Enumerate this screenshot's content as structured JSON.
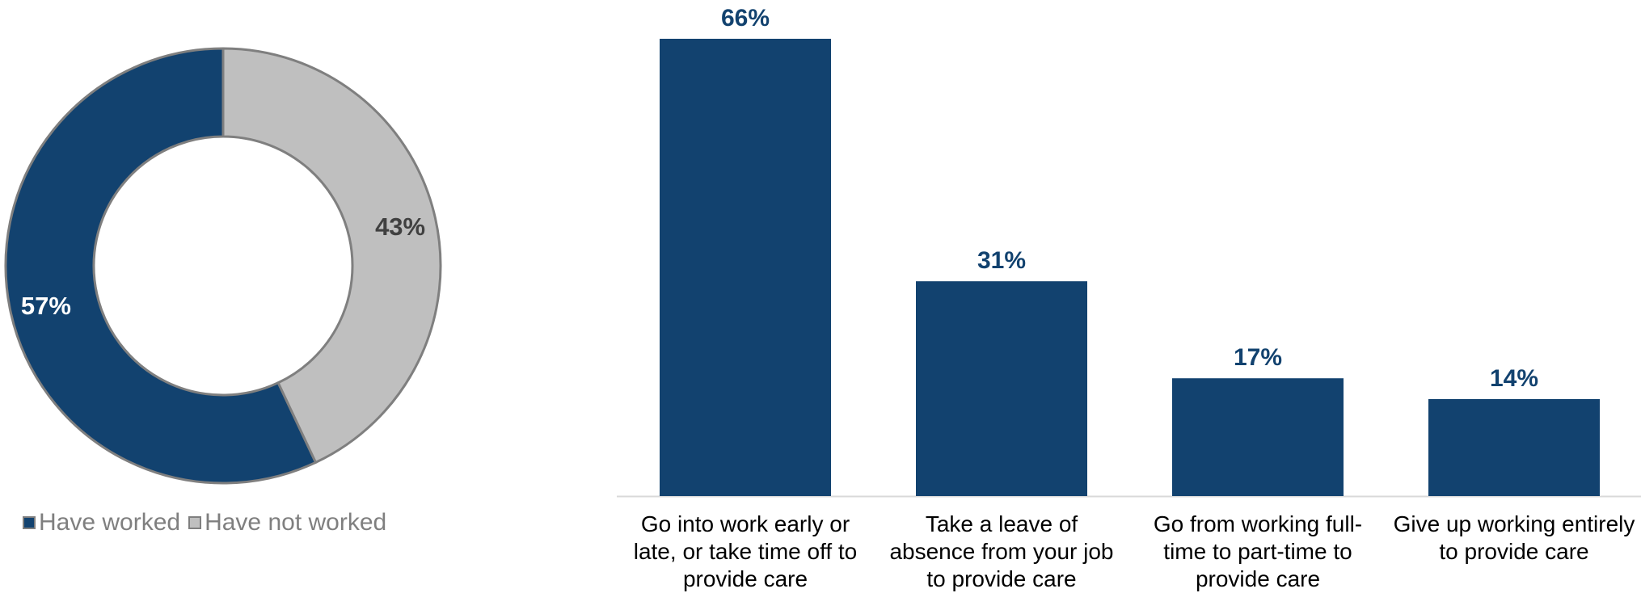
{
  "chart_data": [
    {
      "type": "pie",
      "categories": [
        "Have worked",
        "Have not worked"
      ],
      "values": [
        57,
        43
      ],
      "value_labels": [
        "57%",
        "43%"
      ],
      "legend": [
        "Have worked",
        "Have not worked"
      ],
      "legend_position": "bottom-left"
    },
    {
      "type": "bar",
      "categories": [
        [
          "Go into work early or",
          "late, or take time off to",
          "provide care"
        ],
        [
          "Take a leave of",
          "absence from your job",
          "to provide care"
        ],
        [
          "Go from working full-",
          "time to part-time to",
          "provide care"
        ],
        [
          "Give up working entirely",
          "to provide care"
        ]
      ],
      "values": [
        66,
        31,
        17,
        14
      ],
      "value_labels": [
        "66%",
        "31%",
        "17%",
        "14%"
      ],
      "ylim": [
        0,
        66
      ],
      "grid": false
    }
  ],
  "colors": {
    "have_worked": "#12426f",
    "have_not_worked": "#bfbfbf",
    "bar": "#12426f",
    "donut_outline": "#7f7f7f",
    "label_dark": "#404040",
    "label_light": "#ffffff",
    "axis": "#d9d9d9"
  }
}
